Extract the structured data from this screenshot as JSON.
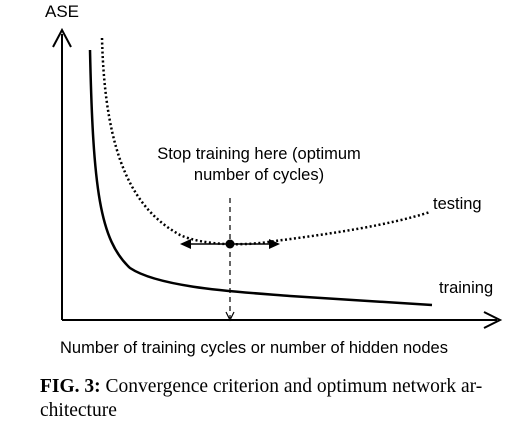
{
  "figure": {
    "y_axis_label": "ASE",
    "x_axis_label": "Number of training cycles or number of hidden nodes",
    "annotation_line1": "Stop training here (optimum",
    "annotation_line2": "number of cycles)",
    "testing_label": "testing",
    "training_label": "training"
  },
  "caption": {
    "label": "FIG. 3:",
    "text_line1": " Convergence criterion and optimum network ar-",
    "text_line2": "chitecture"
  },
  "colors": {
    "ink": "#000000",
    "background": "#ffffff"
  }
}
